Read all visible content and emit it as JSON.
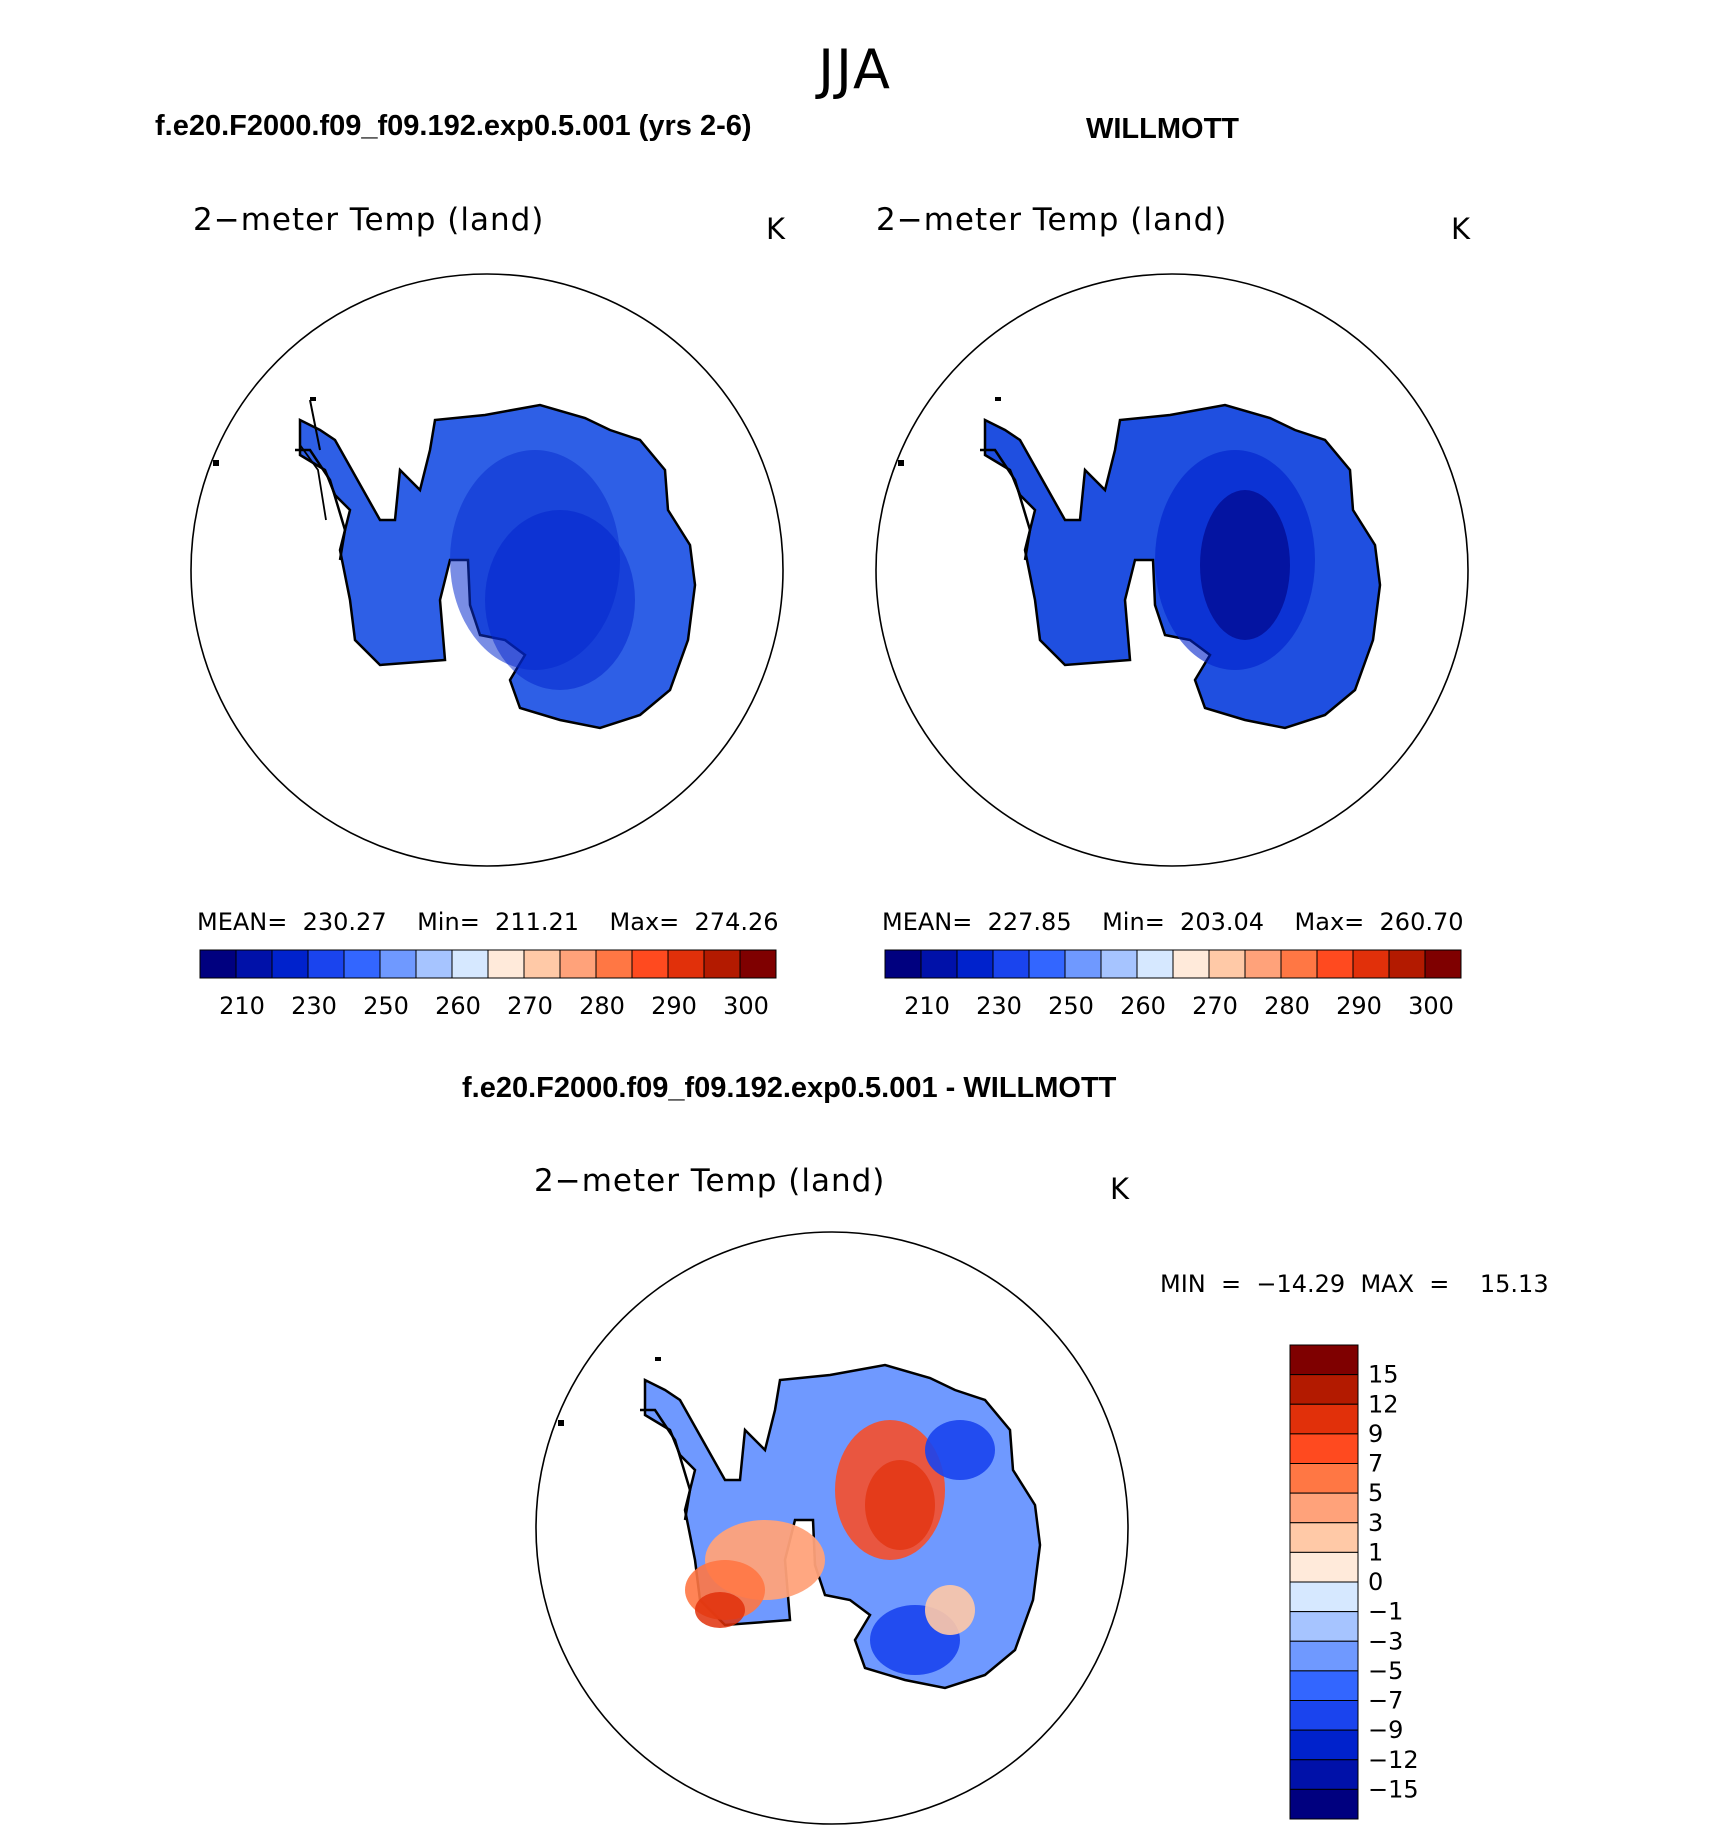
{
  "title": "JJA",
  "panel_top_left": {
    "case_title": "f.e20.F2000.f09_f09.192.exp0.5.001 (yrs 2-6)",
    "var_title": "2−meter Temp (land)",
    "unit": "K",
    "stats": "MEAN=  230.27    Min=  211.21    Max=  274.26",
    "fill_color": "#2e5fe6"
  },
  "panel_top_right": {
    "case_title": "WILLMOTT",
    "var_title": "2−meter Temp (land)",
    "unit": "K",
    "stats": "MEAN=  227.85    Min=  203.04    Max=  260.70",
    "fill_color": "#1f4fe0"
  },
  "panel_bottom": {
    "case_title": "f.e20.F2000.f09_f09.192.exp0.5.001 - WILLMOTT",
    "var_title": "2−meter Temp (land)",
    "unit": "K",
    "stats": "MIN  =  −14.29  MAX  =    15.13"
  },
  "abs_colorbar": {
    "colors": [
      "#00007f",
      "#0011a9",
      "#0022cc",
      "#1a44ee",
      "#3366ff",
      "#6f99ff",
      "#a6c4ff",
      "#d6e8ff",
      "#ffeada",
      "#ffc9a7",
      "#ffa27a",
      "#ff7744",
      "#ff4a1f",
      "#e1300a",
      "#b31a00",
      "#7f0000"
    ],
    "labels": [
      "210",
      "230",
      "250",
      "260",
      "270",
      "280",
      "290",
      "300"
    ]
  },
  "diff_colorbar": {
    "colors": [
      "#7f0000",
      "#b31a00",
      "#e1300a",
      "#ff4a1f",
      "#ff7744",
      "#ffa27a",
      "#ffc9a7",
      "#ffeada",
      "#d6e8ff",
      "#a6c4ff",
      "#6f99ff",
      "#3366ff",
      "#1a44ee",
      "#0022cc",
      "#0011a9",
      "#00007f"
    ],
    "labels": [
      "15",
      "12",
      "9",
      "7",
      "5",
      "3",
      "1",
      "0",
      "−1",
      "−3",
      "−5",
      "−7",
      "−9",
      "−12",
      "−15"
    ]
  }
}
